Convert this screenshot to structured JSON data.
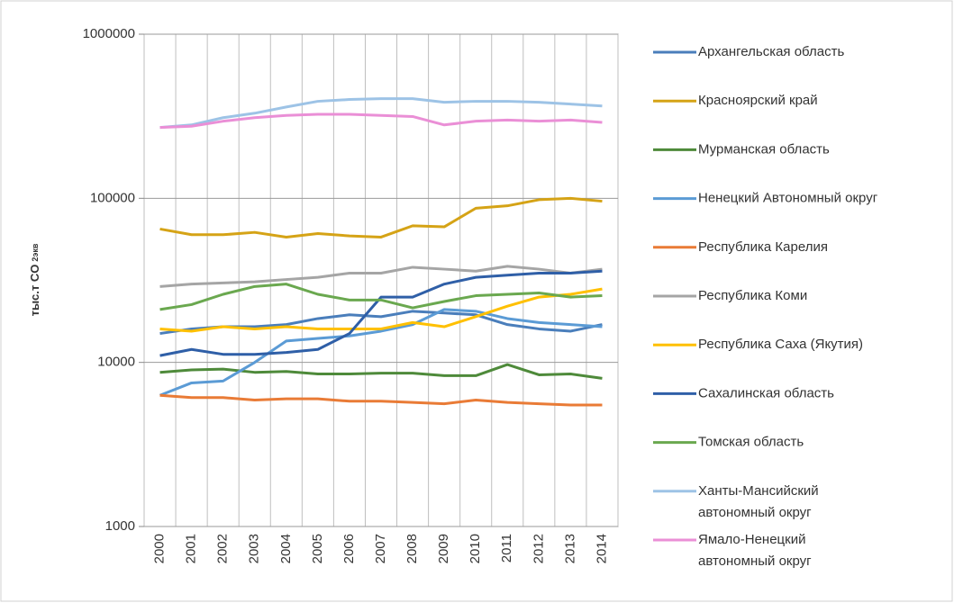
{
  "chart_data": {
    "type": "line",
    "y_label": "тыс.т CO",
    "y_label_sub": "2экв",
    "y_log": true,
    "grid": true,
    "ylim": [
      1000,
      1000000
    ],
    "yticks": [
      1000,
      10000,
      100000,
      1000000
    ],
    "legend": "right",
    "categories": [
      "2000",
      "2001",
      "2002",
      "2003",
      "2004",
      "2005",
      "2006",
      "2007",
      "2008",
      "2009",
      "2010",
      "2011",
      "2012",
      "2013",
      "2014"
    ],
    "series": [
      {
        "name": "Архангельская область",
        "color": "#4a7ebb",
        "values": [
          15000,
          16000,
          16500,
          16500,
          17000,
          18500,
          19500,
          19000,
          20500,
          20000,
          19500,
          17000,
          16000,
          15500,
          17000
        ]
      },
      {
        "name": "Красноярский край",
        "color": "#d5a316",
        "values": [
          65000,
          60000,
          60000,
          62000,
          58000,
          61000,
          59000,
          58000,
          68000,
          67000,
          87000,
          90000,
          98000,
          100000,
          96000
        ]
      },
      {
        "name": "Мурманская область",
        "color": "#4e8a3a",
        "values": [
          8700,
          9000,
          9100,
          8700,
          8800,
          8500,
          8500,
          8600,
          8600,
          8300,
          8300,
          9700,
          8400,
          8500,
          8000
        ]
      },
      {
        "name": "Ненецкий Автономный округ",
        "color": "#5b9bd5",
        "values": [
          6300,
          7500,
          7700,
          10000,
          13500,
          14000,
          14500,
          15500,
          17000,
          21000,
          20500,
          18500,
          17500,
          17000,
          16500
        ]
      },
      {
        "name": "Республика Карелия",
        "color": "#e97b36",
        "values": [
          6300,
          6100,
          6100,
          5900,
          6000,
          6000,
          5800,
          5800,
          5700,
          5600,
          5900,
          5700,
          5600,
          5500,
          5500
        ]
      },
      {
        "name": "Республика Коми",
        "color": "#a5a5a5",
        "values": [
          29000,
          30000,
          30500,
          31000,
          32000,
          33000,
          35000,
          35000,
          38000,
          37000,
          36000,
          38500,
          37000,
          35000,
          37000
        ]
      },
      {
        "name": "Республика Саха (Якутия)",
        "color": "#ffc000",
        "values": [
          16000,
          15500,
          16500,
          16000,
          16500,
          16000,
          16000,
          16000,
          17500,
          16500,
          19000,
          22000,
          25000,
          26000,
          28000
        ]
      },
      {
        "name": "Сахалинская область",
        "color": "#2f5fa7",
        "values": [
          11000,
          12000,
          11200,
          11200,
          11500,
          12000,
          15000,
          25000,
          25000,
          30000,
          33000,
          34000,
          35000,
          35000,
          36000
        ]
      },
      {
        "name": "Томская область",
        "color": "#6aa84f",
        "values": [
          21000,
          22500,
          26000,
          29000,
          30000,
          26000,
          24000,
          24000,
          21500,
          23500,
          25500,
          26000,
          26500,
          25000,
          25500
        ]
      },
      {
        "name": "Ханты-Мансийский автономный округ",
        "color": "#9dc3e6",
        "values": [
          270000,
          280000,
          310000,
          330000,
          360000,
          390000,
          400000,
          405000,
          405000,
          385000,
          390000,
          390000,
          385000,
          375000,
          365000
        ]
      },
      {
        "name": "Ямало-Ненецкий автономный округ",
        "color": "#ea8fd6",
        "values": [
          270000,
          275000,
          295000,
          310000,
          320000,
          325000,
          325000,
          320000,
          315000,
          280000,
          295000,
          300000,
          295000,
          300000,
          290000
        ]
      }
    ]
  }
}
